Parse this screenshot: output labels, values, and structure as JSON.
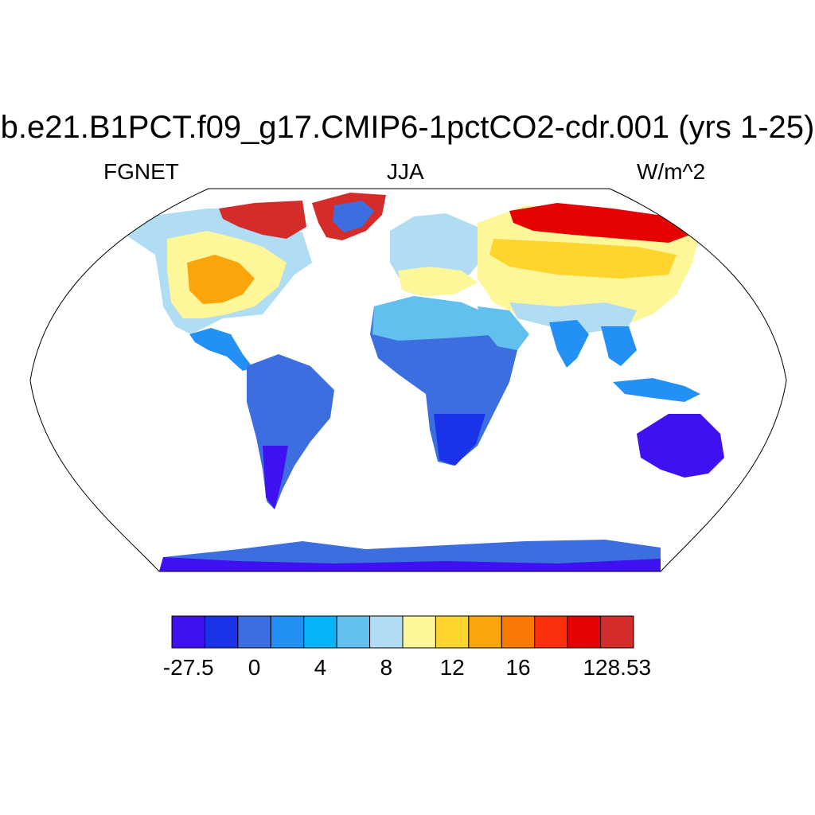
{
  "title": "b.e21.B1PCT.f09_g17.CMIP6-1pctCO2-cdr.001 (yrs 1-25)",
  "left_label": "FGNET",
  "center_label": "JJA",
  "right_label": "W/m^2",
  "colorbar": {
    "colors": [
      "#3f10f0",
      "#1a32e8",
      "#3c6ee0",
      "#2290f5",
      "#06b4fa",
      "#62c0ee",
      "#b0dcf4",
      "#fef79a",
      "#ffd42c",
      "#fca50a",
      "#fb7706",
      "#fb2f0c",
      "#e50202",
      "#d42c2a"
    ],
    "tick_labels": [
      "-27.5",
      "",
      "0",
      "",
      "4",
      "",
      "8",
      "",
      "12",
      "",
      "16",
      "",
      "128.53"
    ]
  },
  "map": {
    "projection": "Robinson",
    "ocean_color": "#ffffff",
    "outline_color": "#000000"
  }
}
